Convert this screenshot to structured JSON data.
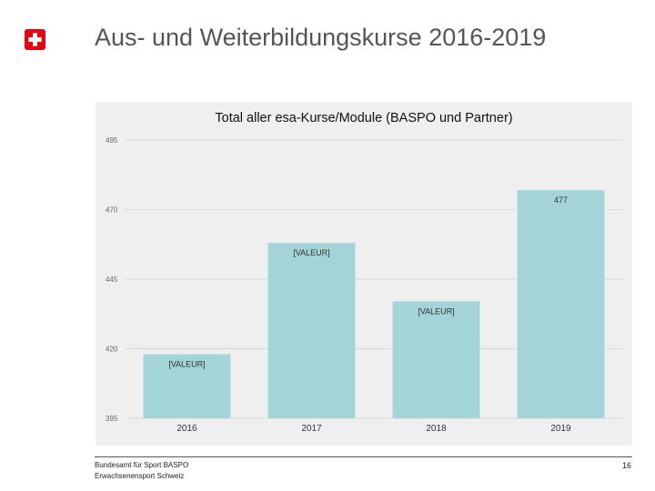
{
  "slide": {
    "title": "Aus- und Weiterbildungskurse 2016-2019",
    "logo": "swiss-cross-icon",
    "brand_color": "#e30613",
    "page_number": "16"
  },
  "footer": {
    "line1": "Bundesamt für Sport BASPO",
    "line2": "Erwachsenensport Schweiz"
  },
  "chart_data": {
    "type": "bar",
    "title": "Total aller esa-Kurse/Module (BASPO und Partner)",
    "categories": [
      "2016",
      "2017",
      "2018",
      "2019"
    ],
    "values": [
      418,
      458,
      437,
      477
    ],
    "data_labels": [
      "[VALEUR]",
      "[VALEUR]",
      "[VALEUR]",
      "477"
    ],
    "y_ticks": [
      395,
      420,
      445,
      470,
      495
    ],
    "ylim": [
      395,
      495
    ],
    "grid": true,
    "bar_color": "#a3d5d8",
    "xlabel": "",
    "ylabel": ""
  }
}
